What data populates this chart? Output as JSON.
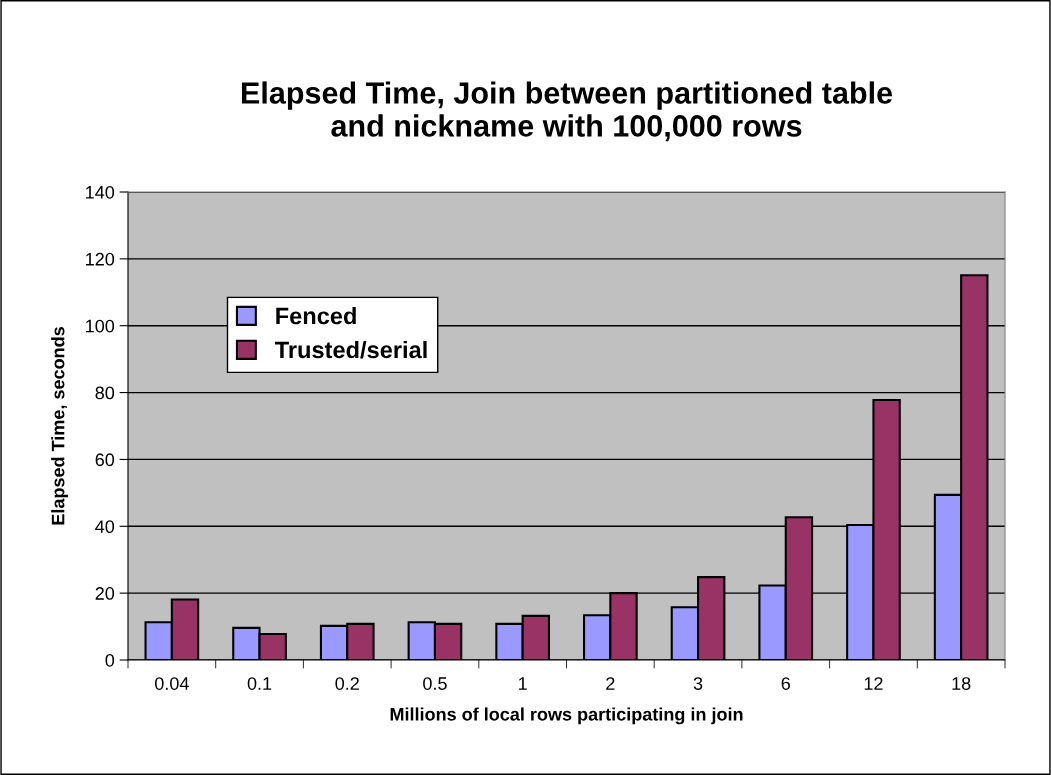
{
  "chart_data": {
    "type": "bar",
    "title": "Elapsed Time, Join between partitioned table\nand nickname with 100,000 rows",
    "xlabel": "Millions of local rows participating in join",
    "ylabel": "Elapsed Time, seconds",
    "categories": [
      "0.04",
      "0.1",
      "0.2",
      "0.5",
      "1",
      "2",
      "3",
      "6",
      "12",
      "18"
    ],
    "series": [
      {
        "name": "Fenced",
        "color": "#9999ff",
        "values": [
          11.3,
          9.6,
          10.2,
          11.3,
          10.8,
          13.4,
          15.8,
          22.3,
          40.4,
          49.4
        ]
      },
      {
        "name": "Trusted/serial",
        "color": "#993366",
        "values": [
          18.1,
          7.8,
          10.8,
          10.8,
          13.2,
          20.0,
          24.8,
          42.7,
          77.8,
          115.1
        ]
      }
    ],
    "ylim": [
      0,
      140
    ],
    "yticks": [
      0,
      20,
      40,
      60,
      80,
      100,
      120,
      140
    ],
    "grid": "y",
    "legend": "top left"
  }
}
